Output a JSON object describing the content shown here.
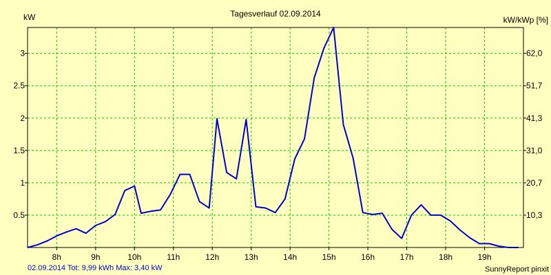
{
  "chart_data": {
    "type": "line",
    "title": "Tagesverlauf 02.09.2014",
    "ylabel_left": "kW",
    "ylabel_right": "kW/kWp [%]",
    "y_ticks_left": [
      "0.5",
      "1",
      "1.5",
      "2",
      "2.5",
      "3"
    ],
    "y_ticks_right": [
      "10,3",
      "20,7",
      "31,0",
      "41,3",
      "51,7",
      "62,0"
    ],
    "x_ticks": [
      "8h",
      "9h",
      "10h",
      "11h",
      "12h",
      "13h",
      "14h",
      "15h",
      "16h",
      "17h",
      "18h",
      "19h"
    ],
    "xlim": [
      7.25,
      20.0
    ],
    "ylim": [
      0,
      3.4
    ],
    "grid": true,
    "line_color": "#0000cc",
    "grid_color": "#00cc00",
    "series": [
      {
        "x": [
          7.25,
          7.5,
          7.75,
          8.0,
          8.25,
          8.5,
          8.75,
          9.0,
          9.25,
          9.5,
          9.75,
          10.0,
          10.17,
          10.42,
          10.67,
          10.92,
          11.17,
          11.42,
          11.67,
          11.92,
          12.12,
          12.37,
          12.62,
          12.87,
          13.12,
          13.37,
          13.62,
          13.87,
          14.12,
          14.37,
          14.62,
          14.87,
          15.12,
          15.37,
          15.62,
          15.87,
          16.12,
          16.37,
          16.62,
          16.87,
          17.12,
          17.37,
          17.62,
          17.87,
          18.12,
          18.37,
          18.62,
          18.87,
          19.12,
          19.37,
          19.62,
          19.87
        ],
        "y": [
          0.0,
          0.04,
          0.1,
          0.18,
          0.24,
          0.29,
          0.22,
          0.34,
          0.4,
          0.51,
          0.88,
          0.95,
          0.53,
          0.56,
          0.58,
          0.82,
          1.13,
          1.13,
          0.71,
          0.61,
          1.99,
          1.16,
          1.06,
          1.98,
          0.63,
          0.61,
          0.54,
          0.75,
          1.37,
          1.68,
          2.62,
          3.08,
          3.4,
          1.9,
          1.38,
          0.54,
          0.51,
          0.53,
          0.28,
          0.14,
          0.5,
          0.66,
          0.5,
          0.5,
          0.41,
          0.27,
          0.15,
          0.06,
          0.06,
          0.02,
          0.0,
          0.0
        ]
      }
    ]
  },
  "footer": {
    "left": "02.09.2014 Tot: 9,99 kWh Max: 3,40 kW",
    "right": "SunnyReport pinxit"
  }
}
